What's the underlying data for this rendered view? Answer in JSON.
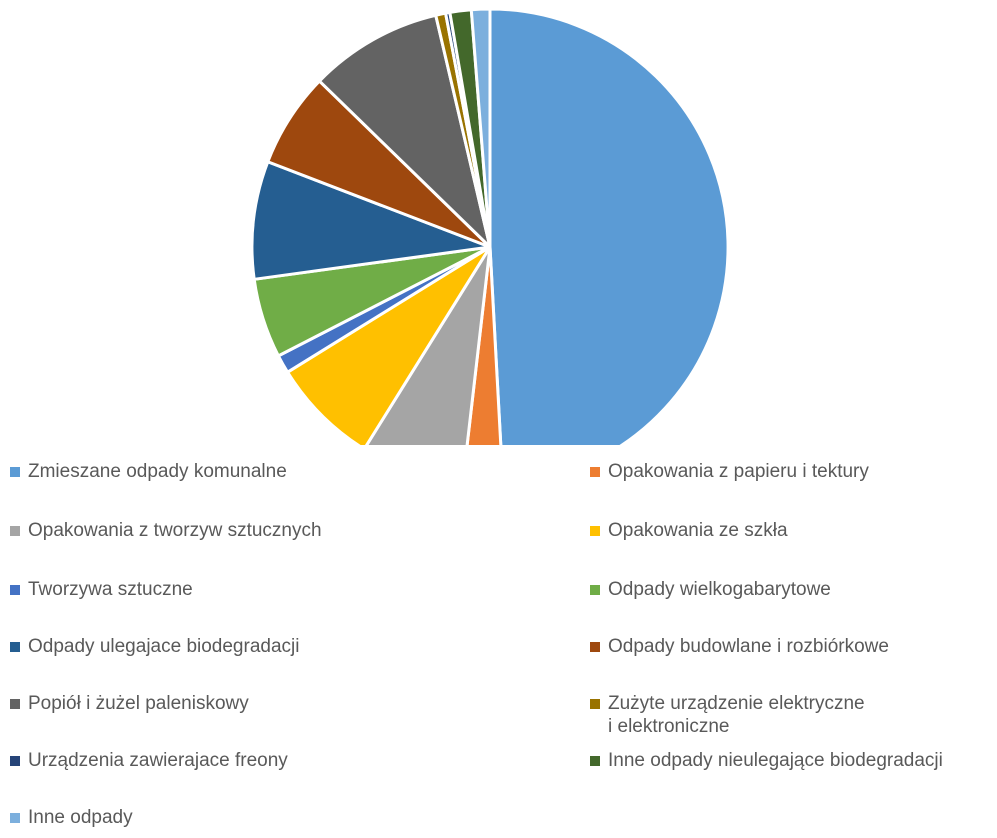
{
  "chart_data": {
    "type": "pie",
    "title": "",
    "start_angle_deg": 0,
    "direction": "clockwise",
    "slice_border_color": "#ffffff",
    "series": [
      {
        "values": [
          51.0,
          2.8,
          7.3,
          7.6,
          1.3,
          5.6,
          8.3,
          6.7,
          9.4,
          0.7,
          0.3,
          1.5,
          1.3
        ],
        "categories": [
          "Zmieszane odpady komunalne",
          "Opakowania z papieru i tektury",
          "Opakowania z tworzyw sztucznych",
          "Opakowania ze szkła",
          "Tworzywa sztuczne",
          "Odpady wielkogabarytowe",
          "Odpady ulegajace biodegradacji",
          "Odpady budowlane i rozbiórkowe",
          "Popiół i żużel paleniskowy",
          "Zużyte urządzenie elektryczne\ni elektroniczne",
          "Urządzenia zawierajace freony",
          "Inne odpady nieulegające biodegradacji",
          "Inne odpady"
        ],
        "colors": [
          "#5B9BD5",
          "#ED7D31",
          "#A5A5A5",
          "#FFC000",
          "#4472C4",
          "#70AD47",
          "#255E91",
          "#9E480E",
          "#636363",
          "#997300",
          "#264478",
          "#43682B",
          "#7CAFDD"
        ]
      }
    ],
    "legend": {
      "position": "bottom",
      "columns": 2
    }
  }
}
